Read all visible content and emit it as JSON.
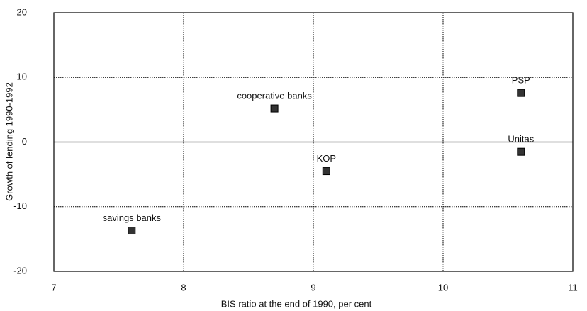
{
  "chart_data": {
    "type": "scatter",
    "x_label": "BIS ratio at the end of 1990, per cent",
    "y_label": "Growth of lending 1990-1992",
    "x": [
      7.6,
      8.7,
      9.1,
      10.6,
      10.6
    ],
    "values": [
      -13.7,
      5.2,
      -4.5,
      7.6,
      -1.5
    ],
    "point_labels": [
      "savings banks",
      "cooperative banks",
      "KOP",
      "PSP",
      "Unitas"
    ],
    "color": "#333333",
    "xlim": [
      7,
      11
    ],
    "xticks": [
      7,
      8,
      9,
      10,
      11
    ],
    "ylim": [
      -20,
      20
    ],
    "yticks": [
      -20,
      -10,
      0,
      10,
      20
    ],
    "grid": true
  }
}
